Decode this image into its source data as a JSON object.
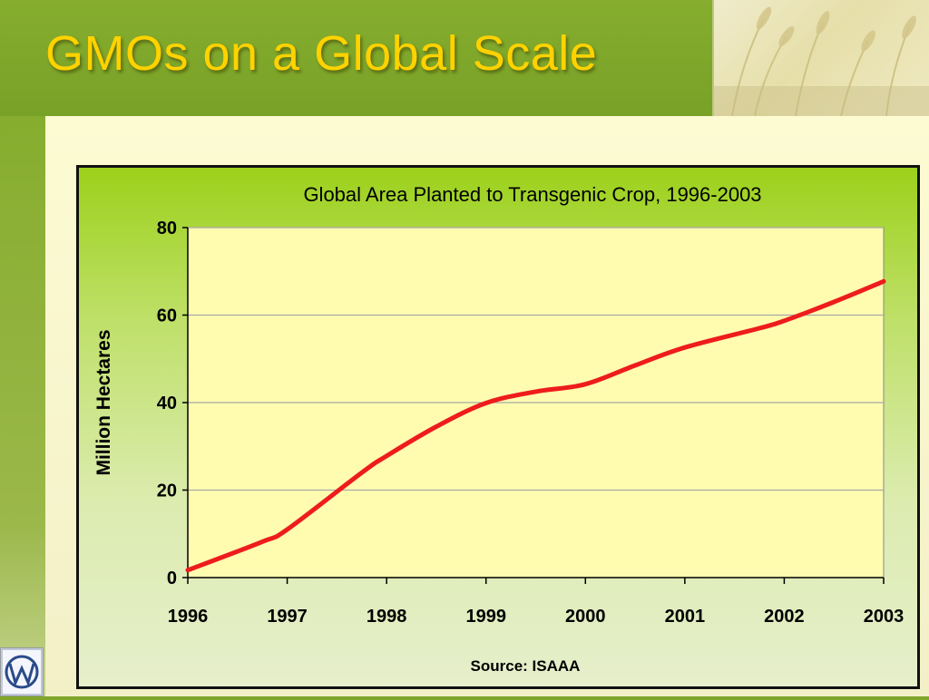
{
  "slide": {
    "title": "GMOs on a Global Scale"
  },
  "colors": {
    "title": "#ffd200",
    "background": "#7fa62b",
    "line": "#ee1c1c",
    "plot_area": "#fffcb0"
  },
  "icons": {
    "header_image": "wheat-field-photo",
    "logo": "wi-logo"
  },
  "chart_data": {
    "type": "line",
    "title": "Global Area Planted to Transgenic Crop, 1996-2003",
    "xlabel": "",
    "ylabel": "Million Hectares",
    "source": "Source: ISAAA",
    "x_ticks": [
      "1996",
      "1997",
      "1998",
      "1999",
      "2000",
      "2001",
      "2002",
      "2003"
    ],
    "y_ticks": [
      "0",
      "20",
      "40",
      "60",
      "80"
    ],
    "xlim": [
      1996,
      2003
    ],
    "ylim": [
      0,
      80
    ],
    "grid": true,
    "legend": "none",
    "series": [
      {
        "x": [
          1996,
          1996.75,
          1997,
          1997.75,
          1998,
          1998.5,
          1999,
          1999.5,
          2000,
          2000.5,
          2001,
          2001.75,
          2002,
          2002.5,
          2003
        ],
        "y": [
          1.7,
          8.2,
          11,
          24,
          27.8,
          34.5,
          39.9,
          42.5,
          44.2,
          48.5,
          52.6,
          57,
          58.7,
          63,
          67.7
        ]
      }
    ]
  }
}
